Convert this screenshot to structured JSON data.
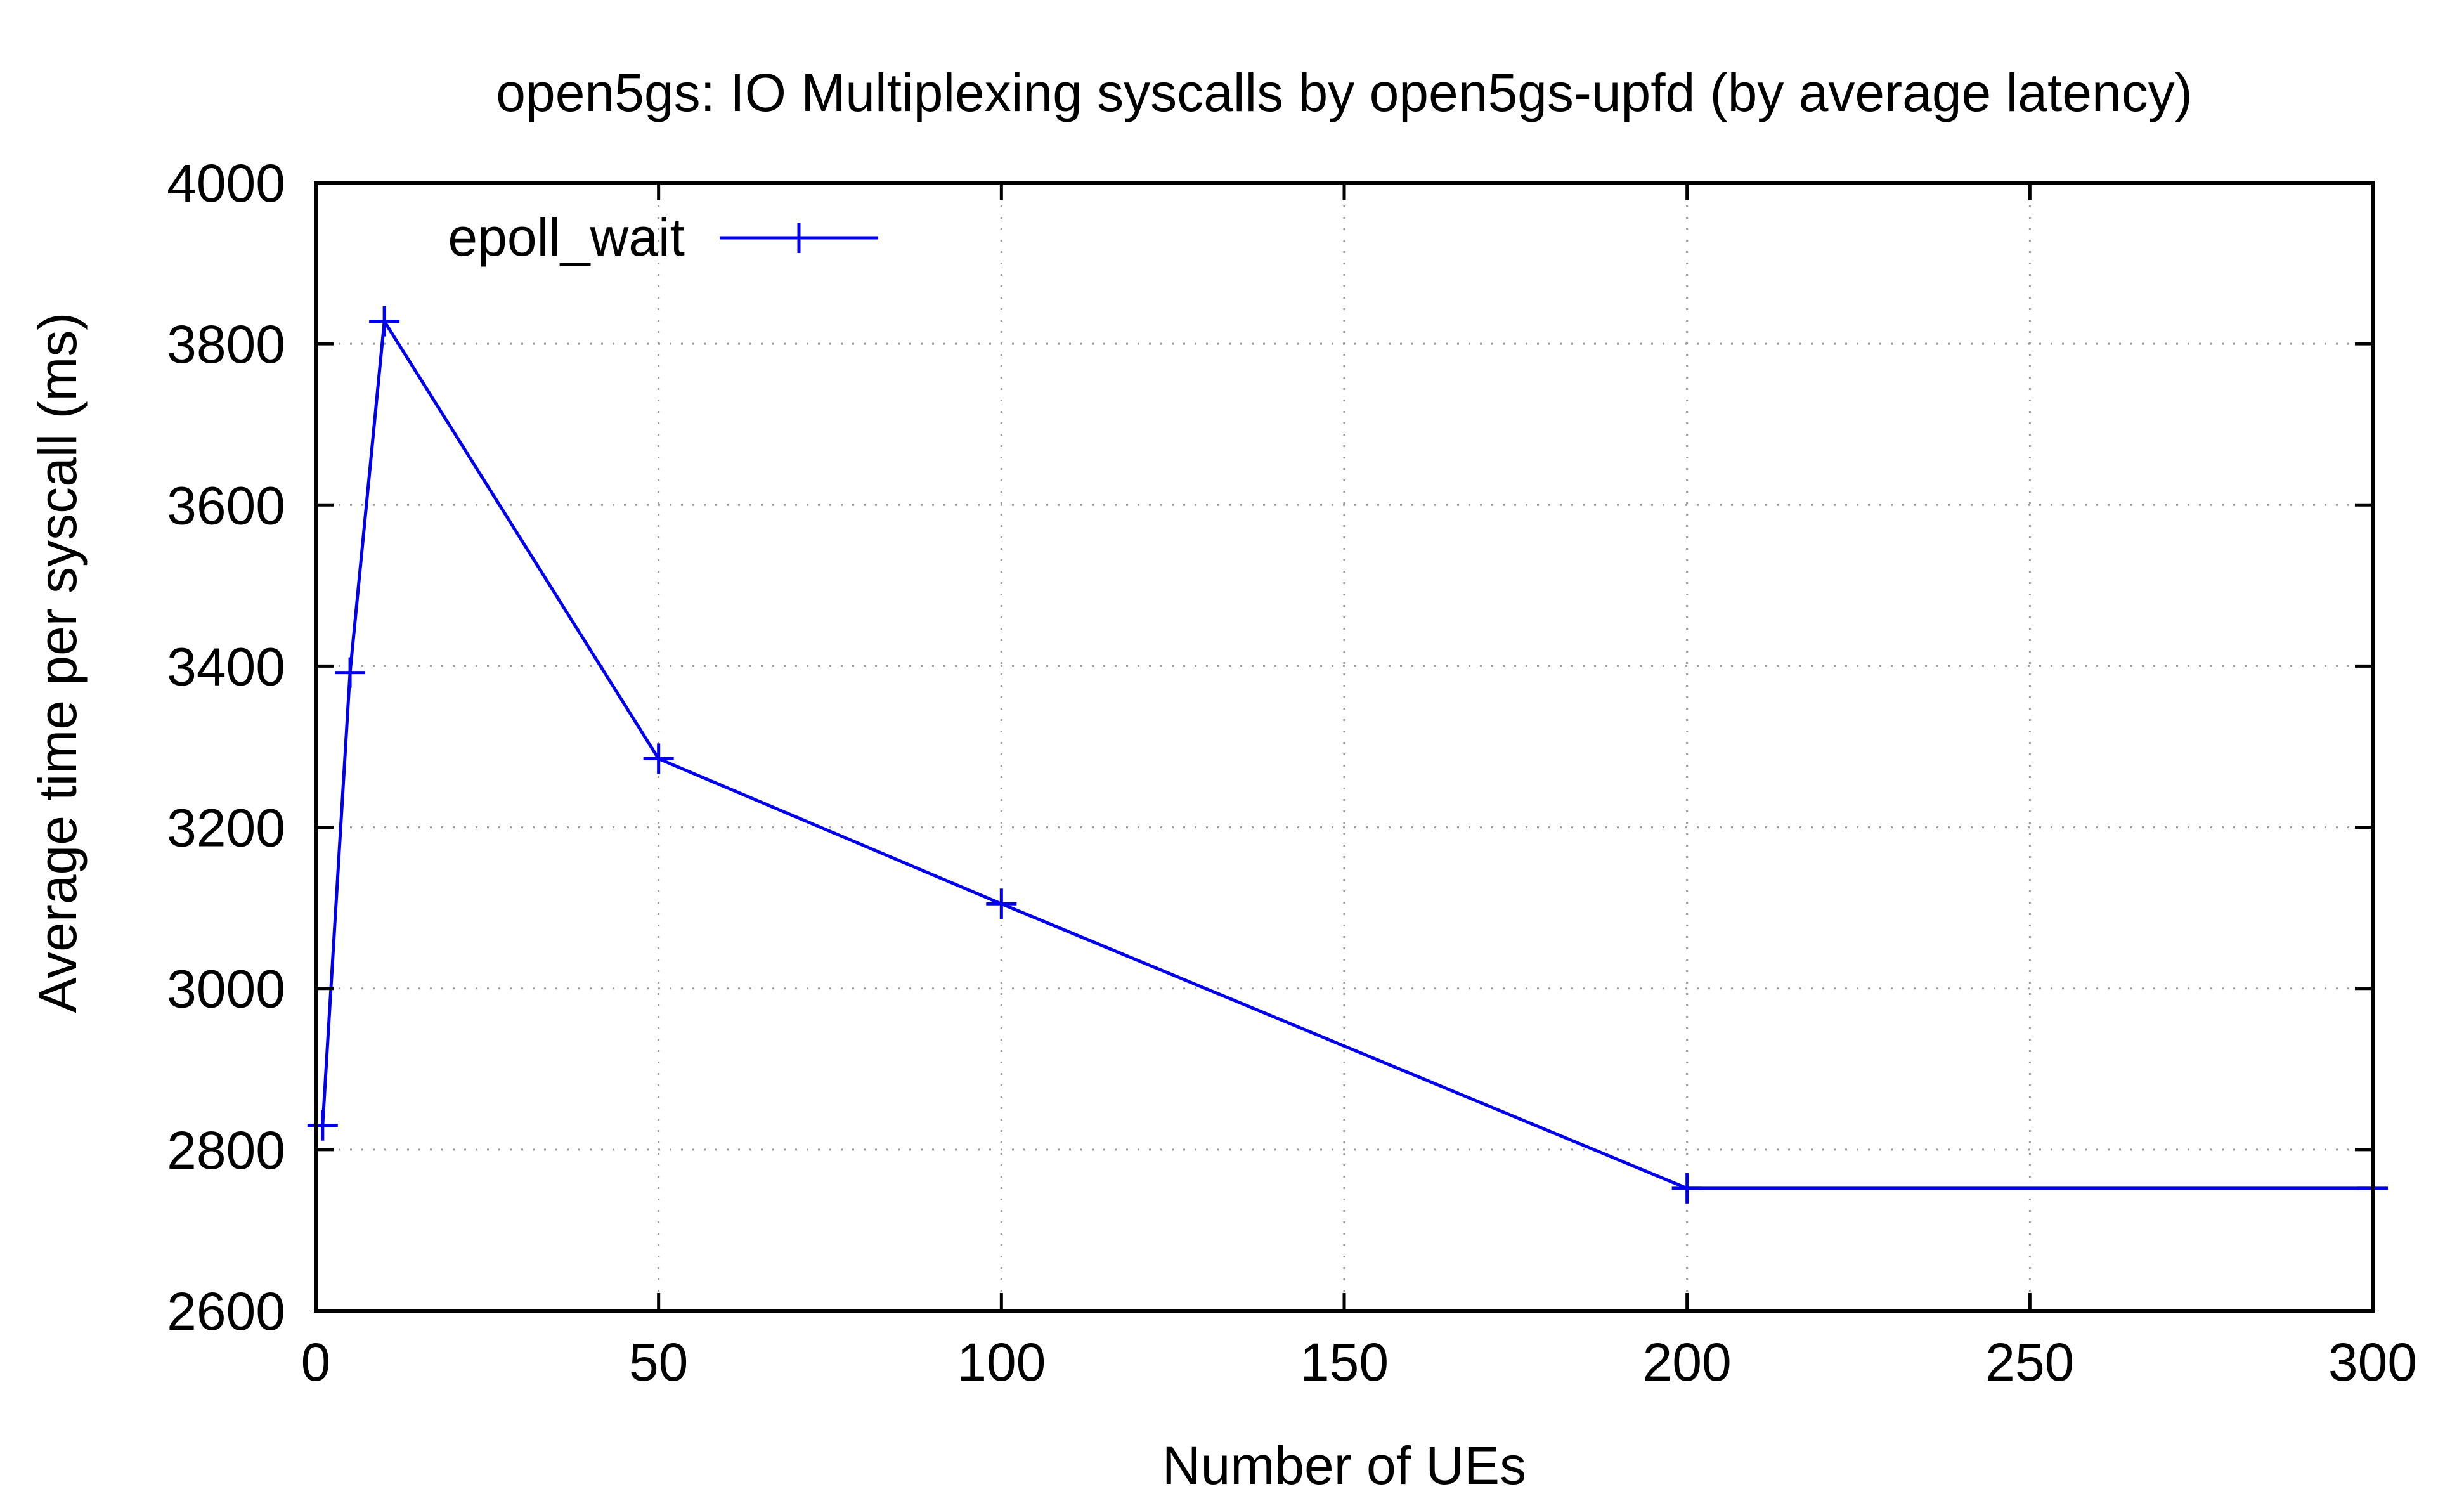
{
  "chart_data": {
    "type": "line",
    "title": "open5gs: IO Multiplexing syscalls by open5gs-upfd (by average latency)",
    "xlabel": "Number of UEs",
    "ylabel": "Average time per syscall (ms)",
    "xlim": [
      0,
      300
    ],
    "ylim": [
      2600,
      4000
    ],
    "xticks": [
      0,
      50,
      100,
      150,
      200,
      250,
      300
    ],
    "yticks": [
      2600,
      2800,
      3000,
      3200,
      3400,
      3600,
      3800,
      4000
    ],
    "grid": true,
    "legend_position": "top-left",
    "series": [
      {
        "name": "epoll_wait",
        "color": "#0000ee",
        "marker": "plus",
        "x": [
          1,
          5,
          10,
          50,
          100,
          200,
          300
        ],
        "y": [
          2830,
          3392,
          3828,
          3285,
          3105,
          2752,
          2752
        ]
      }
    ]
  }
}
